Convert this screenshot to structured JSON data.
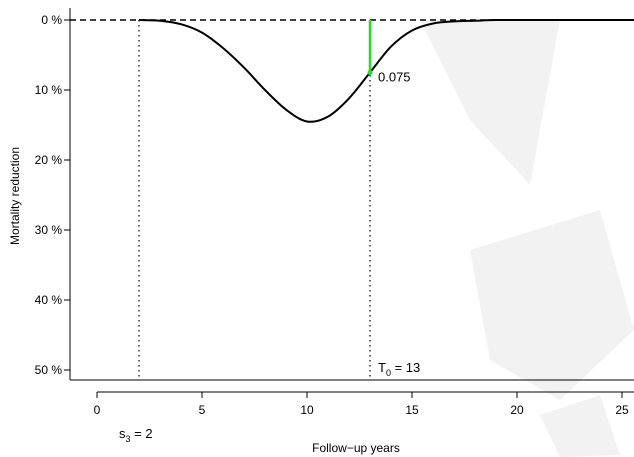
{
  "chart_data": {
    "type": "line",
    "title": "",
    "xlabel": "Follow−up years",
    "ylabel": "Mortality reduction",
    "xlim": [
      -1.3,
      25.8
    ],
    "ylim": [
      0.52,
      -0.007
    ],
    "y_inverted": true,
    "grid": false,
    "legend": "none",
    "x_ticks": [
      0,
      5,
      10,
      15,
      20,
      25
    ],
    "x_tick_labels": [
      "0",
      "5",
      "10",
      "15",
      "20",
      "25"
    ],
    "y_ticks": [
      0,
      0.1,
      0.2,
      0.3,
      0.4,
      0.5
    ],
    "y_tick_labels": [
      "0 %",
      "10 %",
      "20 %",
      "30 %",
      "40 %",
      "50 %"
    ],
    "series": [
      {
        "color": "#000000",
        "x": [
          2,
          3,
          4,
          5,
          6,
          7,
          8,
          9,
          10,
          11,
          12,
          13,
          14,
          15,
          16,
          17,
          18,
          19,
          20,
          21,
          22,
          23,
          24,
          25,
          25.8
        ],
        "y": [
          0.0,
          0.001,
          0.006,
          0.018,
          0.04,
          0.068,
          0.1,
          0.128,
          0.145,
          0.138,
          0.112,
          0.075,
          0.038,
          0.015,
          0.005,
          0.002,
          0.001,
          0.0,
          0.0,
          0.0,
          0.0,
          0.0,
          0.0,
          0.0,
          0.0
        ]
      }
    ],
    "reference_line": {
      "y": 0,
      "style": "dashed",
      "color": "#000000"
    },
    "vlines": [
      {
        "x": 2,
        "style": "dotted",
        "label_main": "s",
        "label_sub": "3",
        "label_rest": " = 2"
      },
      {
        "x": 13,
        "style": "dotted",
        "label_main": "T",
        "label_sub": "0",
        "label_rest": " = 13"
      }
    ],
    "highlight": {
      "x": 13,
      "y_from": 0,
      "y_to": 0.075,
      "color": "#22dd22",
      "label": "0.075"
    }
  }
}
